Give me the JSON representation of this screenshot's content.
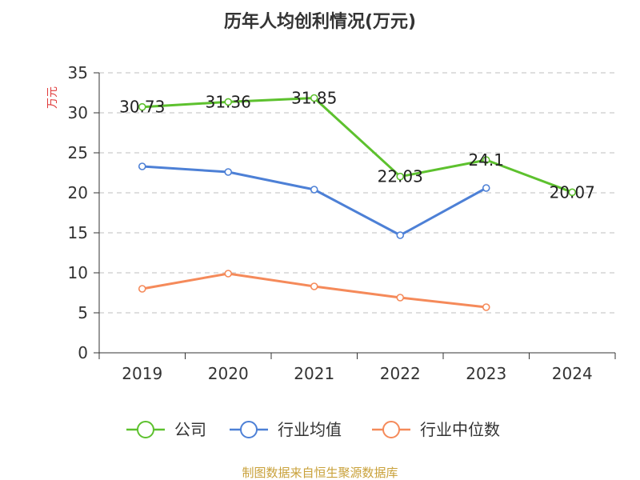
{
  "chart_data": {
    "type": "line",
    "title": "历年人均创利情况(万元)",
    "ylabel": "万元",
    "xlabel": "",
    "categories": [
      "2019",
      "2020",
      "2021",
      "2022",
      "2023",
      "2024"
    ],
    "ylim": [
      0,
      35
    ],
    "yticks": [
      0,
      5,
      10,
      15,
      20,
      25,
      30,
      35
    ],
    "grid": "horizontal-dashed",
    "legend_position": "bottom",
    "series": [
      {
        "name": "公司",
        "color": "#5dc12e",
        "values": [
          30.73,
          31.36,
          31.85,
          22.03,
          24.1,
          20.07
        ],
        "labels": [
          "30.73",
          "31.36",
          "31.85",
          "22.03",
          "24.1",
          "20.07"
        ]
      },
      {
        "name": "行业均值",
        "color": "#4d80d6",
        "values": [
          23.3,
          22.6,
          20.4,
          14.7,
          20.6,
          null
        ]
      },
      {
        "name": "行业中位数",
        "color": "#f58a5a",
        "values": [
          8.0,
          9.9,
          8.3,
          6.9,
          5.7,
          null
        ]
      }
    ]
  },
  "footer": {
    "source": "制图数据来自恒生聚源数据库"
  }
}
